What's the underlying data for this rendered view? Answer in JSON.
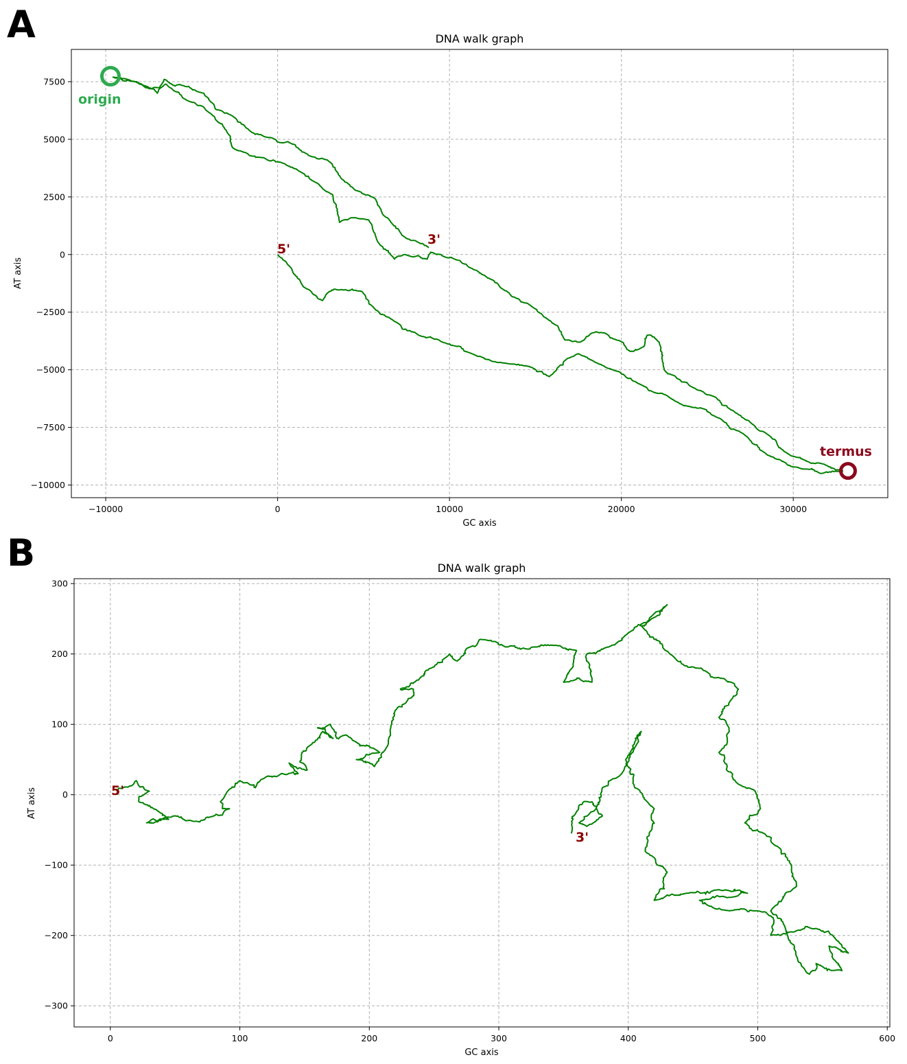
{
  "panels": [
    {
      "letter": "A",
      "title": "DNA walk graph",
      "xlabel": "GC axis",
      "ylabel": "AT axis",
      "x_ticks": [
        "−10000",
        "0",
        "10000",
        "20000",
        "30000"
      ],
      "y_ticks": [
        "7500",
        "5000",
        "2500",
        "0",
        "−2500",
        "−5000",
        "−7500",
        "−10000"
      ],
      "annotations": {
        "start": "5'",
        "end": "3'",
        "origin": "origin",
        "termus": "termus"
      }
    },
    {
      "letter": "B",
      "title": "DNA walk graph",
      "xlabel": "GC axis",
      "ylabel": "AT axis",
      "x_ticks": [
        "0",
        "100",
        "200",
        "300",
        "400",
        "500",
        "600"
      ],
      "y_ticks": [
        "300",
        "200",
        "100",
        "0",
        "−100",
        "−200",
        "−300"
      ],
      "annotations": {
        "start": "5'",
        "end": "3'"
      }
    }
  ],
  "chart_data": [
    {
      "type": "line",
      "title": "DNA walk graph",
      "xlabel": "GC axis",
      "ylabel": "AT axis",
      "xlim": [
        -12000,
        35500
      ],
      "ylim": [
        -10550,
        8900
      ],
      "x_ticks": [
        -10000,
        0,
        10000,
        20000,
        30000
      ],
      "y_ticks": [
        7500,
        5000,
        2500,
        0,
        -2500,
        -5000,
        -7500,
        -10000
      ],
      "grid": true,
      "line_color": "#008000",
      "series": [
        {
          "x": [
            0,
            800,
            1500,
            2600,
            3300,
            4900,
            5700,
            6600,
            8200,
            9600,
            11300,
            13100,
            14800,
            15800,
            16900,
            17500,
            19500,
            21000,
            22600,
            24000,
            25700,
            27300,
            28500,
            30500,
            31600,
            32900
          ],
          "y": [
            0,
            -600,
            -1400,
            -2000,
            -1500,
            -1600,
            -2400,
            -2800,
            -3500,
            -3800,
            -4300,
            -4700,
            -4900,
            -5300,
            -4500,
            -4300,
            -5000,
            -5600,
            -6100,
            -6600,
            -7100,
            -7900,
            -8700,
            -9300,
            -9500,
            -9400
          ]
        },
        {
          "x": [
            32900,
            31800,
            30900,
            29800,
            28300,
            27700,
            26300,
            25500,
            24000,
            23300,
            22500,
            22200,
            21500,
            21300,
            20500,
            19700,
            19000,
            18300,
            17600,
            16700,
            16300,
            15700,
            14700,
            13900,
            13100,
            12200,
            11300,
            10300,
            9500,
            8900,
            8700,
            7400,
            6800,
            5800,
            5300,
            4300,
            3600,
            3200,
            2300,
            1300,
            200,
            -800,
            -1800,
            -2700,
            -3000,
            -3700,
            -4300,
            -5300,
            -6500,
            -7300,
            -8300,
            -9600
          ],
          "y": [
            -9400,
            -9100,
            -9000,
            -8700,
            -7700,
            -7400,
            -6700,
            -6200,
            -5700,
            -5400,
            -5000,
            -3800,
            -3500,
            -4000,
            -4200,
            -3700,
            -3400,
            -3400,
            -3800,
            -3700,
            -3100,
            -2800,
            -2200,
            -1900,
            -1500,
            -1000,
            -600,
            -200,
            0,
            100,
            -200,
            0,
            -200,
            600,
            1500,
            1600,
            1400,
            2600,
            3100,
            3600,
            4000,
            4200,
            4400,
            4800,
            5400,
            6000,
            6400,
            6700,
            7400,
            7200,
            7500,
            7700
          ]
        },
        {
          "x": [
            -9600,
            -8200,
            -7000,
            -6600,
            -5400,
            -4300,
            -3600,
            -2600,
            -1500,
            -700,
            600,
            1800,
            2900,
            3700,
            4500,
            5700,
            6500,
            7500,
            8800
          ],
          "y": [
            7700,
            7500,
            7000,
            7600,
            7300,
            7000,
            6300,
            6000,
            5300,
            5100,
            4900,
            4300,
            4100,
            3300,
            2800,
            2400,
            1500,
            700,
            300
          ]
        }
      ]
    },
    {
      "type": "line",
      "title": "DNA walk graph",
      "xlabel": "GC axis",
      "ylabel": "AT axis",
      "xlim": [
        -28,
        602
      ],
      "ylim": [
        -330,
        307
      ],
      "x_ticks": [
        0,
        100,
        200,
        300,
        400,
        500,
        600
      ],
      "y_ticks": [
        300,
        200,
        100,
        0,
        -100,
        -200,
        -300
      ],
      "grid": true,
      "line_color": "#008000",
      "series": [
        {
          "x": [
            5,
            10,
            20,
            30,
            22,
            38,
            45,
            28,
            50,
            65,
            80,
            92,
            85,
            100,
            112,
            120,
            132,
            145,
            138,
            152,
            148,
            158,
            164,
            172,
            160,
            170,
            175,
            182,
            195,
            208,
            190,
            204,
            215,
            220,
            228,
            234,
            224,
            235,
            248,
            262,
            268,
            278,
            290,
            306,
            328,
            345,
            360,
            350,
            372,
            370,
            368,
            385,
            400,
            418,
            430,
            410,
            438,
            452,
            460,
            474,
            485,
            470,
            478,
            470,
            476,
            485,
            498,
            502,
            490,
            505,
            512,
            526,
            530,
            510,
            522,
            530,
            540,
            545,
            565,
            555,
            570,
            558,
            545,
            528,
            510,
            512,
            498,
            478,
            465,
            455,
            482,
            492,
            470,
            445,
            420,
            430,
            413,
            418,
            420,
            405,
            398,
            410,
            406,
            395,
            380,
            375,
            362,
            368,
            380,
            372,
            362,
            356
          ],
          "y": [
            0,
            10,
            20,
            5,
            -10,
            -25,
            -35,
            -40,
            -30,
            -38,
            -30,
            -20,
            -10,
            20,
            10,
            25,
            30,
            30,
            45,
            35,
            60,
            75,
            90,
            80,
            95,
            100,
            80,
            85,
            70,
            60,
            50,
            40,
            80,
            120,
            130,
            150,
            150,
            160,
            180,
            200,
            190,
            210,
            220,
            210,
            210,
            212,
            205,
            160,
            160,
            180,
            200,
            210,
            230,
            250,
            270,
            240,
            190,
            180,
            175,
            165,
            150,
            110,
            90,
            60,
            35,
            15,
            5,
            -20,
            -40,
            -55,
            -70,
            -100,
            -130,
            -165,
            -195,
            -230,
            -255,
            -240,
            -250,
            -215,
            -225,
            -200,
            -190,
            -195,
            -200,
            -175,
            -165,
            -165,
            -160,
            -150,
            -145,
            -140,
            -135,
            -140,
            -150,
            -110,
            -80,
            -50,
            -20,
            10,
            50,
            90,
            70,
            30,
            10,
            -20,
            -40,
            -45,
            -30,
            -10,
            -15,
            -55
          ]
        }
      ]
    }
  ]
}
